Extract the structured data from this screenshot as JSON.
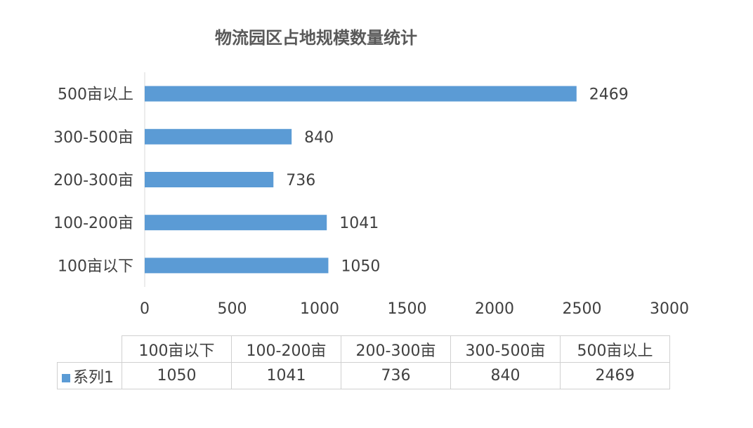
{
  "chart_data": {
    "type": "bar",
    "orientation": "horizontal",
    "title": "物流园区占地规模数量统计",
    "categories": [
      "100亩以下",
      "100-200亩",
      "200-300亩",
      "300-500亩",
      "500亩以上"
    ],
    "series": [
      {
        "name": "系列1",
        "values": [
          1050,
          1041,
          736,
          840,
          2469
        ],
        "color": "#5b9bd5"
      }
    ],
    "xlim": [
      0,
      3000
    ],
    "xticks": [
      0,
      500,
      1000,
      1500,
      2000,
      2500,
      3000
    ],
    "grid": false,
    "data_labels": true,
    "data_table": true
  }
}
